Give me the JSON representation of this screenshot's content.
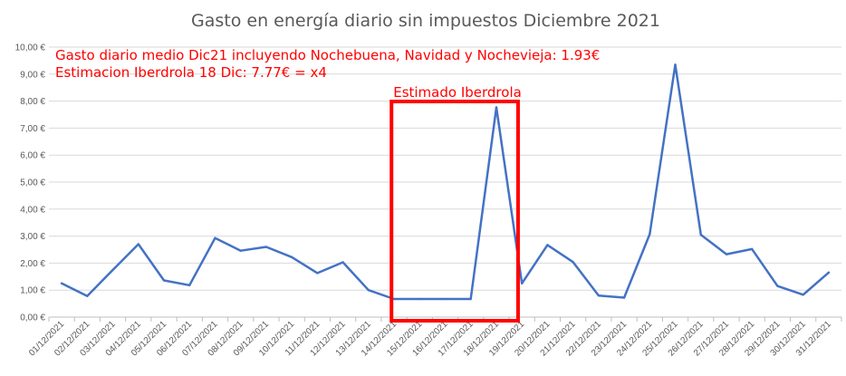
{
  "chart_data": {
    "type": "line",
    "title": "Gasto en energía diario sin impuestos Diciembre 2021",
    "xlabel": "",
    "ylabel": "",
    "ylim": [
      0,
      10
    ],
    "y_ticks": [
      "0,00 €",
      "1,00 €",
      "2,00 €",
      "3,00 €",
      "4,00 €",
      "5,00 €",
      "6,00 €",
      "7,00 €",
      "8,00 €",
      "9,00 €",
      "10,00 €"
    ],
    "grid": "horizontal",
    "categories": [
      "01/12/2021",
      "02/12/2021",
      "03/12/2021",
      "04/12/2021",
      "05/12/2021",
      "06/12/2021",
      "07/12/2021",
      "08/12/2021",
      "09/12/2021",
      "10/12/2021",
      "11/12/2021",
      "12/12/2021",
      "13/12/2021",
      "14/12/2021",
      "15/12/2021",
      "16/12/2021",
      "17/12/2021",
      "18/12/2021",
      "19/12/2021",
      "20/12/2021",
      "21/12/2021",
      "22/12/2021",
      "23/12/2021",
      "24/12/2021",
      "25/12/2021",
      "26/12/2021",
      "27/12/2021",
      "28/12/2021",
      "29/12/2021",
      "30/12/2021",
      "31/12/2021"
    ],
    "series": [
      {
        "values": [
          1.25,
          0.78,
          1.75,
          2.7,
          1.36,
          1.18,
          2.93,
          2.46,
          2.6,
          2.22,
          1.63,
          2.03,
          1.0,
          0.67,
          0.67,
          0.67,
          0.67,
          7.77,
          1.25,
          2.67,
          2.04,
          0.8,
          0.72,
          3.07,
          9.35,
          3.05,
          2.33,
          2.52,
          1.15,
          0.83,
          1.65
        ]
      }
    ],
    "annotations": [
      "Gasto diario medio Dic21 incluyendo Nochebuena, Navidad y Nochevieja: 1.93€",
      "Estimacion Iberdrola 18 Dic: 7.77€ = x4"
    ],
    "highlight": {
      "label": "Estimado Iberdrola",
      "from_category": "14/12/2021",
      "to_category": "18/12/2021"
    },
    "colors": {
      "line": "#4472c4",
      "grid": "#d9d9d9",
      "highlight": "#ff0000",
      "text": "#595959"
    }
  }
}
